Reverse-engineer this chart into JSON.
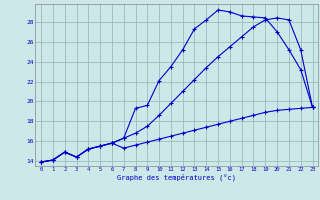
{
  "title": "Graphe des températures (°c)",
  "bg_color": "#cce8e8",
  "grid_color": "#9bbcbc",
  "line_color": "#0000cc",
  "spine_color": "#888888",
  "xlim": [
    -0.5,
    23.5
  ],
  "ylim": [
    13.5,
    29.8
  ],
  "yticks": [
    14,
    16,
    18,
    20,
    22,
    24,
    26,
    28
  ],
  "xticks": [
    0,
    1,
    2,
    3,
    4,
    5,
    6,
    7,
    8,
    9,
    10,
    11,
    12,
    13,
    14,
    15,
    16,
    17,
    18,
    19,
    20,
    21,
    22,
    23
  ],
  "line1_x": [
    0,
    1,
    2,
    3,
    4,
    5,
    6,
    7,
    8,
    9,
    10,
    11,
    12,
    13,
    14,
    15,
    16,
    17,
    18,
    19,
    20,
    21,
    22,
    23
  ],
  "line1_y": [
    13.9,
    14.1,
    14.9,
    14.4,
    15.2,
    15.5,
    15.8,
    16.3,
    19.3,
    19.6,
    22.1,
    23.5,
    25.2,
    27.3,
    28.2,
    29.2,
    29.0,
    28.6,
    28.5,
    28.4,
    27.0,
    25.2,
    23.2,
    19.4
  ],
  "line2_x": [
    0,
    1,
    2,
    3,
    4,
    5,
    6,
    7,
    8,
    9,
    10,
    11,
    12,
    13,
    14,
    15,
    16,
    17,
    18,
    19,
    20,
    21,
    22,
    23
  ],
  "line2_y": [
    13.9,
    14.1,
    14.9,
    14.4,
    15.2,
    15.5,
    15.8,
    16.3,
    16.8,
    17.5,
    18.6,
    19.8,
    21.0,
    22.2,
    23.4,
    24.5,
    25.5,
    26.5,
    27.5,
    28.2,
    28.4,
    28.2,
    25.2,
    19.4
  ],
  "line3_x": [
    0,
    1,
    2,
    3,
    4,
    5,
    6,
    7,
    8,
    9,
    10,
    11,
    12,
    13,
    14,
    15,
    16,
    17,
    18,
    19,
    20,
    21,
    22,
    23
  ],
  "line3_y": [
    13.9,
    14.1,
    14.9,
    14.4,
    15.2,
    15.5,
    15.8,
    15.3,
    15.6,
    15.9,
    16.2,
    16.5,
    16.8,
    17.1,
    17.4,
    17.7,
    18.0,
    18.3,
    18.6,
    18.9,
    19.1,
    19.2,
    19.3,
    19.4
  ]
}
